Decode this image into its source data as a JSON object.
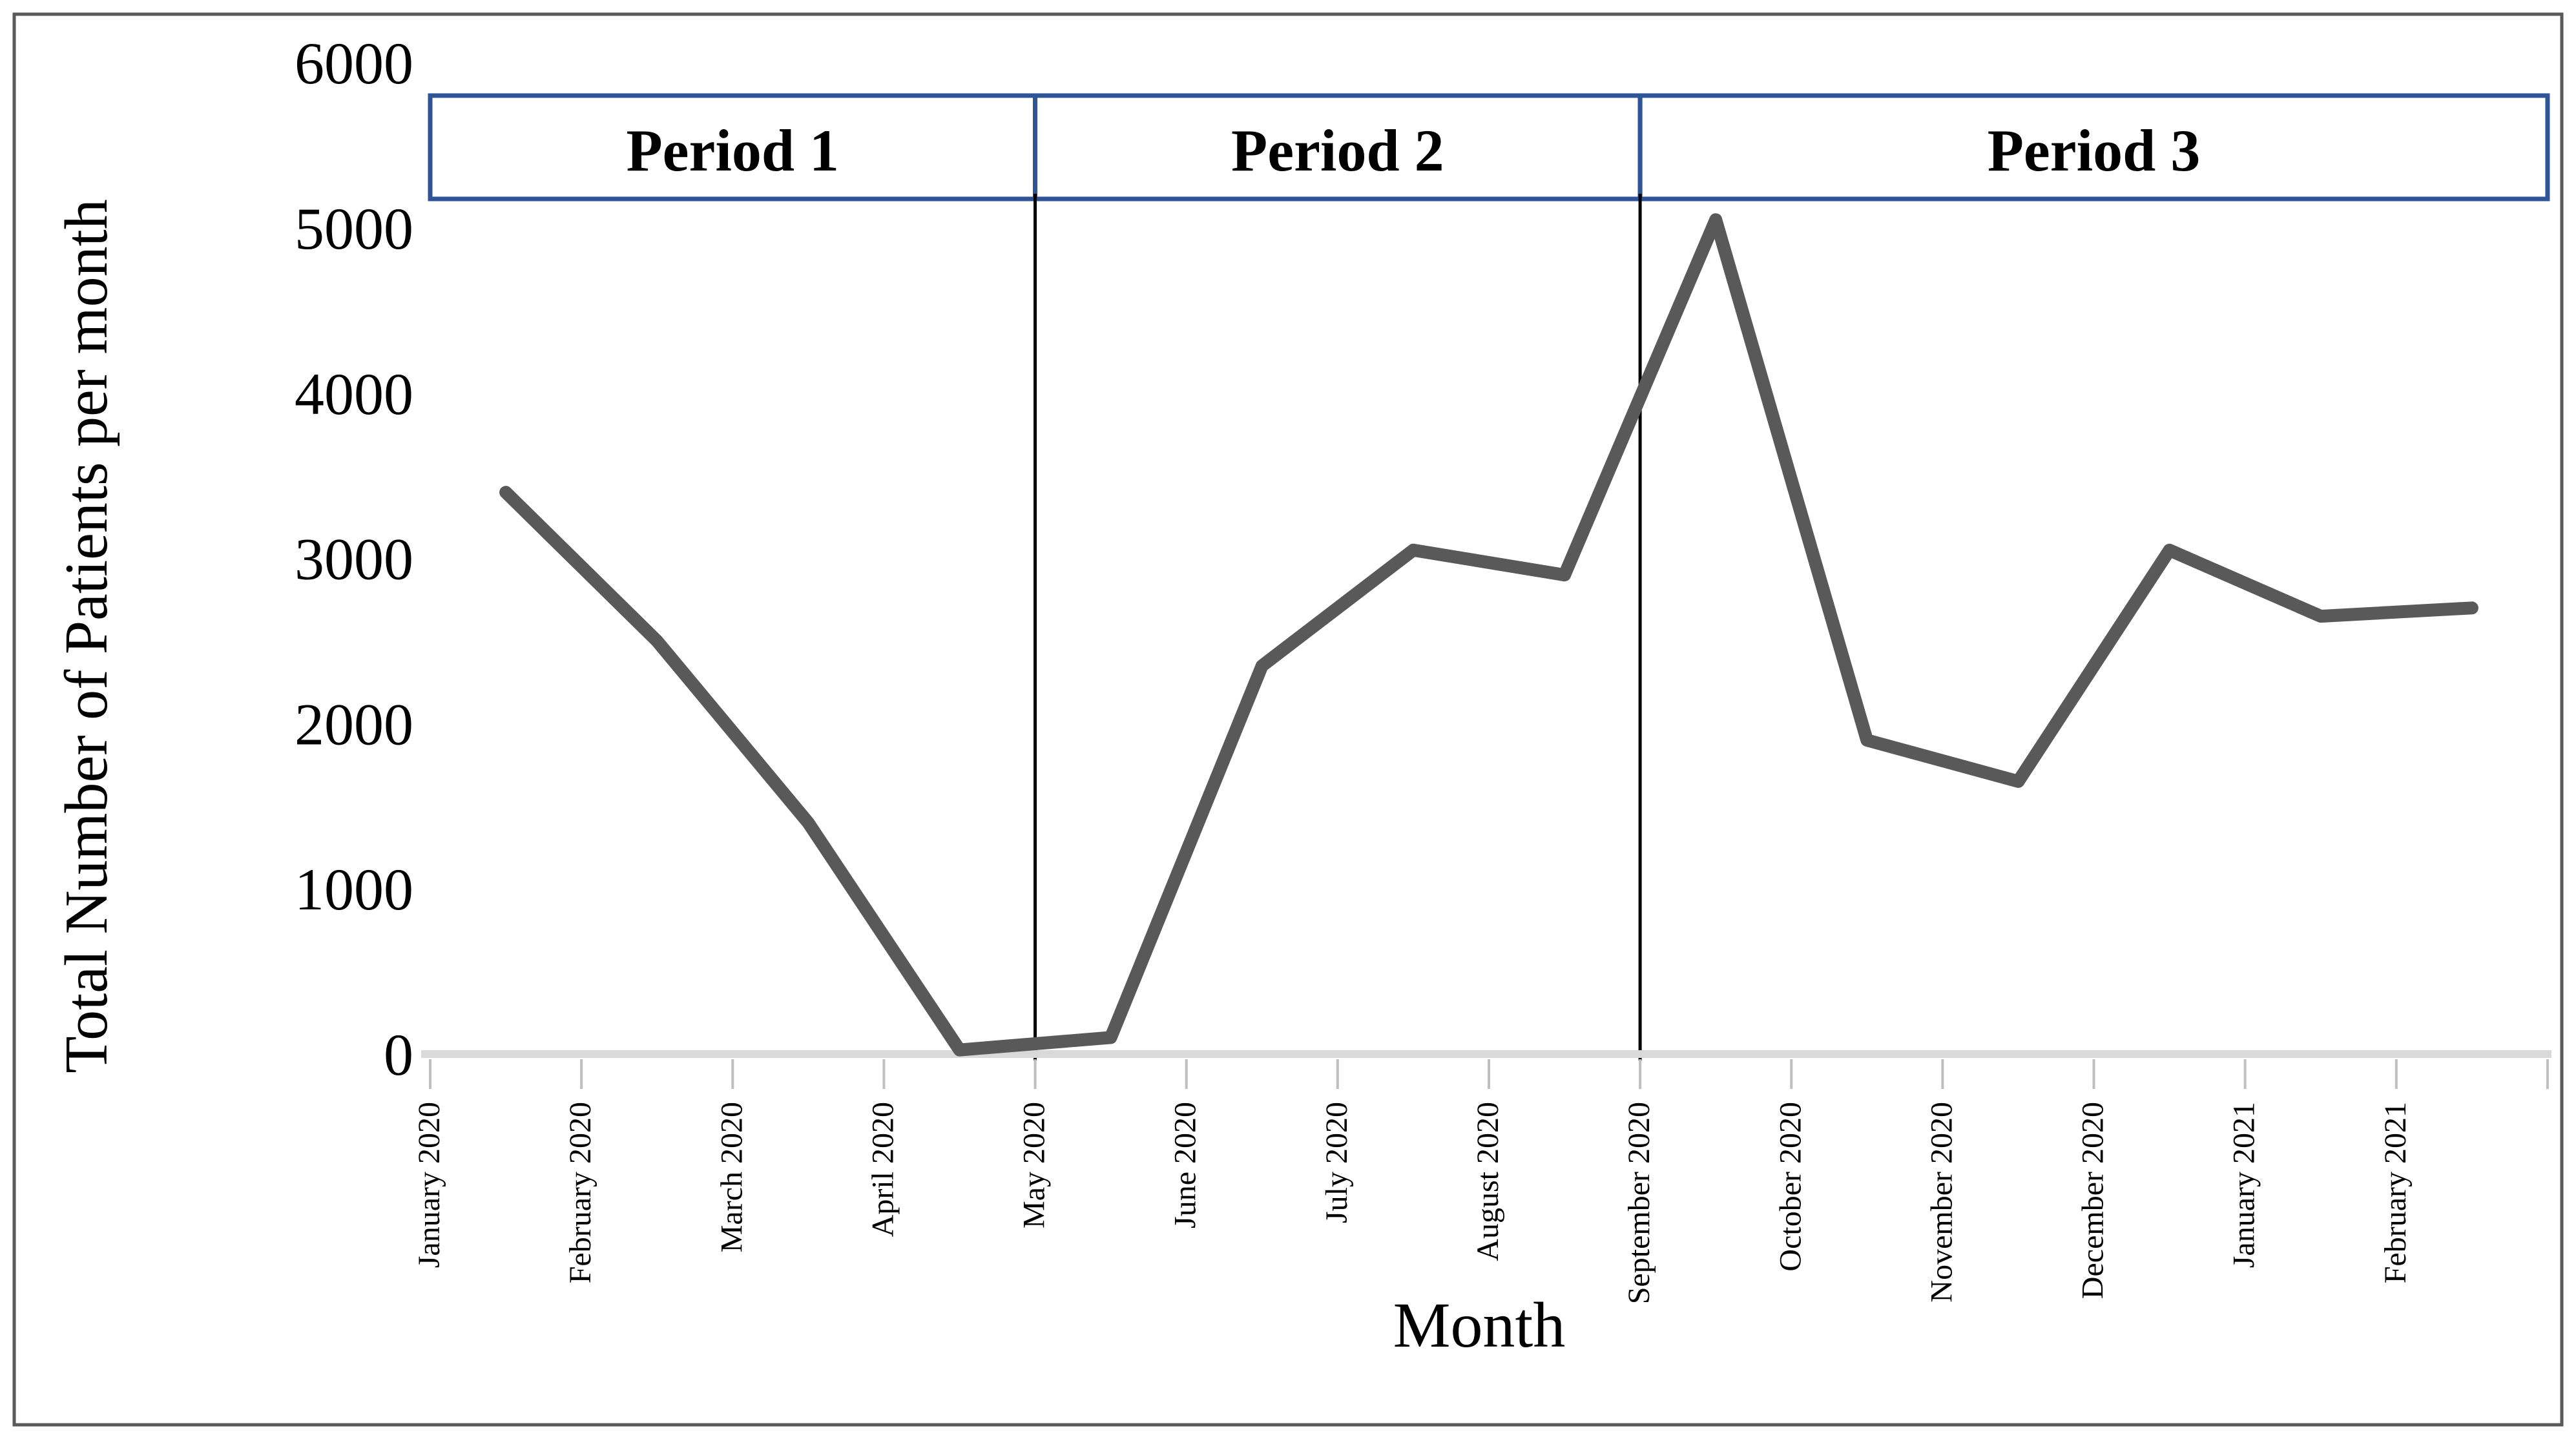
{
  "chart_data": {
    "type": "line",
    "title": "",
    "ylabel": "Total Number of Patients per month",
    "xlabel": "Month",
    "categories": [
      "January 2020",
      "February 2020",
      "March 2020",
      "April 2020",
      "May 2020",
      "June 2020",
      "July 2020",
      "August 2020",
      "September 2020",
      "October 2020",
      "November 2020",
      "December 2020",
      "January 2021",
      "February 2021"
    ],
    "series": [
      {
        "name": "Total Number of Patients per month",
        "values": [
          3400,
          2500,
          1400,
          25,
          100,
          2350,
          3050,
          2900,
          5050,
          1900,
          1650,
          3050,
          2650,
          2700
        ]
      }
    ],
    "ylim": [
      0,
      6000
    ],
    "ytick_step": 1000,
    "ytick_labels": [
      "0",
      "1000",
      "2000",
      "3000",
      "4000",
      "5000",
      "6000"
    ],
    "grid": false,
    "legend_position": "none",
    "annotations": {
      "periods": [
        {
          "label": "Period 1",
          "from": "January 2020",
          "to": "May 2020"
        },
        {
          "label": "Period 2",
          "from": "May 2020",
          "to": "September 2020"
        },
        {
          "label": "Period 3",
          "from": "September 2020",
          "to": "end"
        }
      ],
      "dividers": [
        "May 2020",
        "September 2020"
      ]
    },
    "colors": {
      "series_line": "#595959",
      "axis_line": "#d9d9d9",
      "tick_mark": "#bfbfbf",
      "period_box_border": "#2f5597",
      "divider_line": "#000000",
      "figure_border": "#58595b",
      "text": "#000000"
    }
  }
}
